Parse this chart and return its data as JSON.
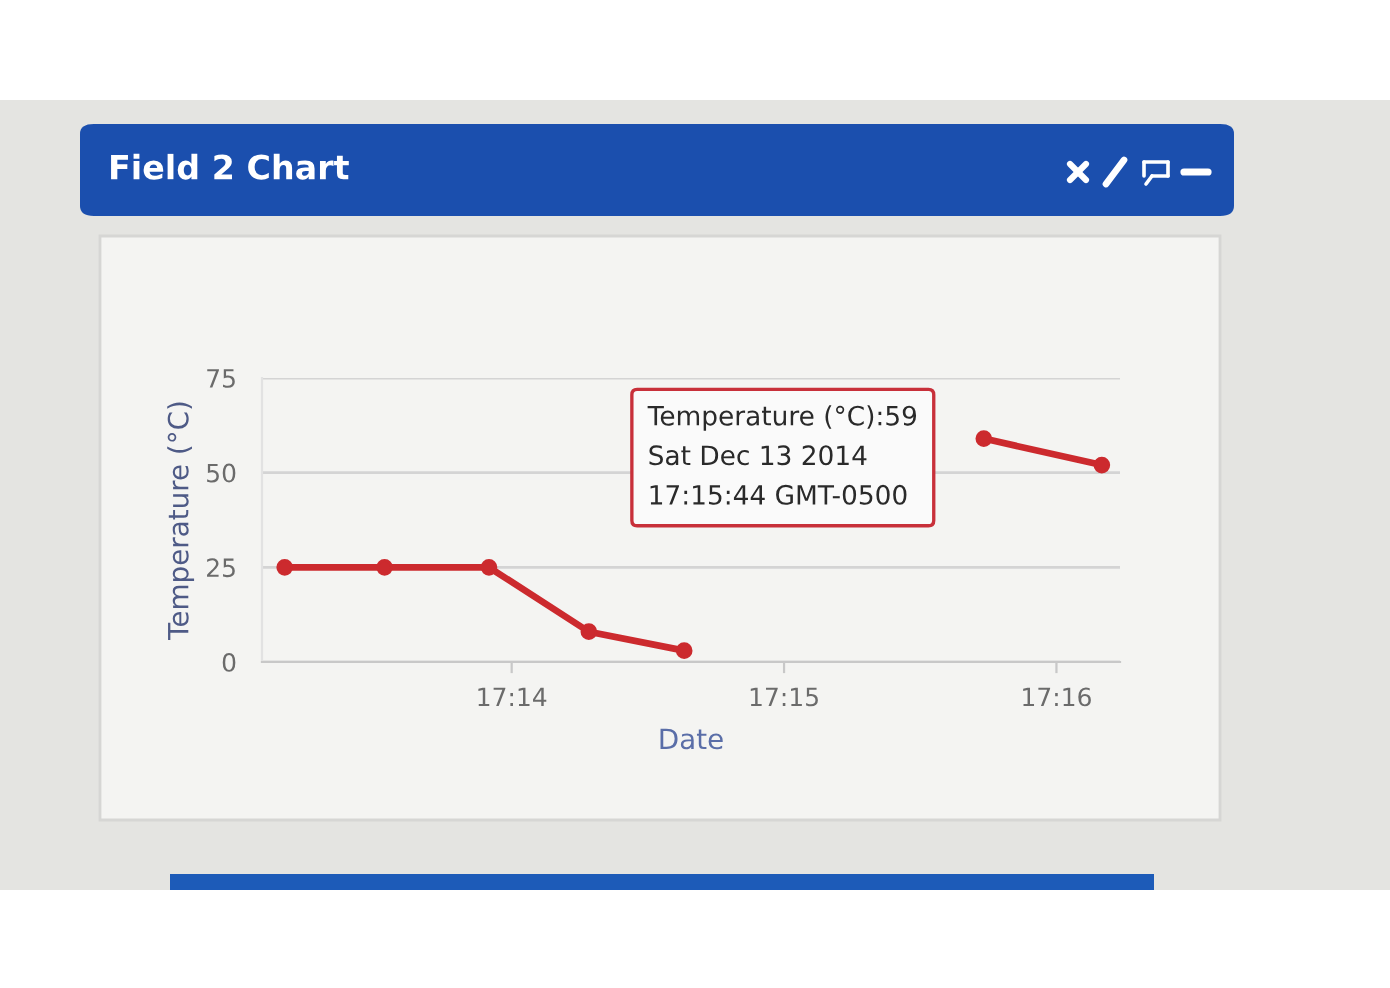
{
  "chart_data": {
    "type": "line",
    "title": "Field 2 Chart",
    "xlabel": "Date",
    "ylabel": "Temperature (°C)",
    "x": [
      "2014-12-13T17:13:10",
      "2014-12-13T17:13:32",
      "2014-12-13T17:13:55",
      "2014-12-13T17:14:17",
      "2014-12-13T17:14:38",
      "2014-12-13T17:15:00",
      "2014-12-13T17:15:22",
      "2014-12-13T17:15:44",
      "2014-12-13T17:16:10"
    ],
    "series": [
      {
        "color": "#cc2a2e",
        "values": [
          25,
          25,
          25,
          8,
          3,
          null,
          null,
          59,
          52
        ]
      }
    ],
    "xlim": [
      "2014-12-13T17:13:05",
      "2014-12-13T17:16:14"
    ],
    "xticks": [
      {
        "value": "2014-12-13T17:14",
        "label": "17:14"
      },
      {
        "value": "2014-12-13T17:15",
        "label": "17:15"
      },
      {
        "value": "2014-12-13T17:16",
        "label": "17:16"
      }
    ],
    "ylim": [
      0,
      75
    ],
    "yticks": [
      0,
      25,
      50,
      75
    ],
    "grid": "y",
    "marker": "circle",
    "line_style": "solid",
    "annotations": [
      {
        "text": "Temperature (°C):59\nSat Dec 13 2014\n17:15:44 GMT-0500",
        "x": "2014-12-13T17:15:44",
        "y": 59
      }
    ]
  }
}
